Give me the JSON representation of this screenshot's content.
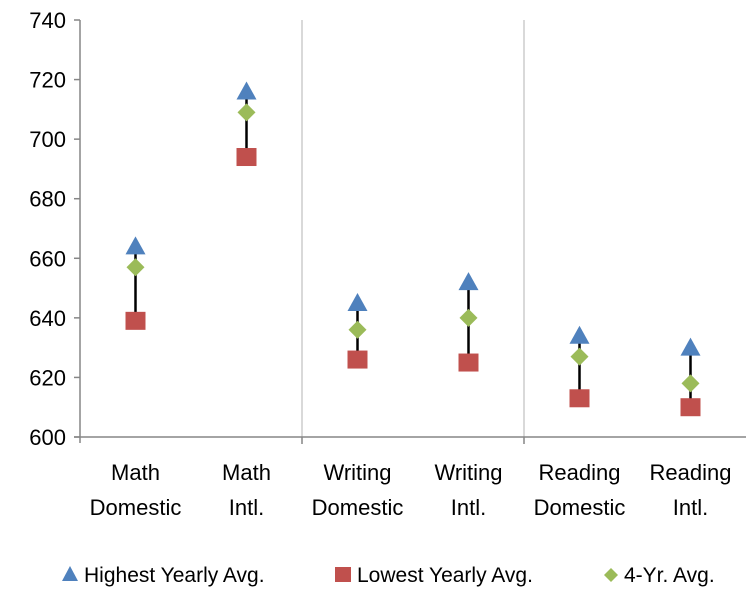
{
  "chart_data": {
    "type": "scatter",
    "title": "",
    "xlabel": "",
    "ylabel": "",
    "ylim": [
      600,
      740
    ],
    "yticks": [
      600,
      620,
      640,
      660,
      680,
      700,
      720,
      740
    ],
    "grid": false,
    "legend_position": "bottom",
    "categories": [
      [
        "Math",
        "Domestic"
      ],
      [
        "Math",
        "Intl."
      ],
      [
        "Writing",
        "Domestic"
      ],
      [
        "Writing",
        "Intl."
      ],
      [
        "Reading",
        "Domestic"
      ],
      [
        "Reading",
        "Intl."
      ]
    ],
    "series": [
      {
        "name": "Highest Yearly Avg.",
        "marker": "triangle",
        "color": "#4F81BD",
        "values": [
          664,
          716,
          645,
          652,
          634,
          630
        ]
      },
      {
        "name": "Lowest Yearly Avg.",
        "marker": "square",
        "color": "#C0504D",
        "values": [
          639,
          694,
          626,
          625,
          613,
          610
        ]
      },
      {
        "name": "4-Yr. Avg.",
        "marker": "diamond",
        "color": "#9BBB59",
        "values": [
          657,
          709,
          636,
          640,
          627,
          618
        ]
      }
    ],
    "high_low_lines": true
  }
}
